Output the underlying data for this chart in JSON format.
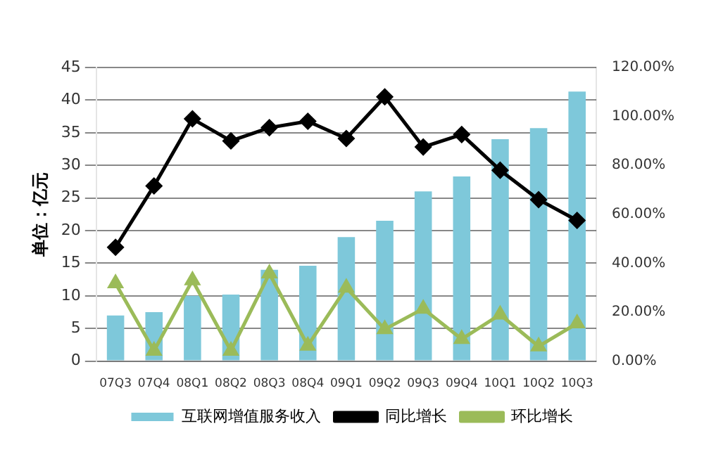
{
  "chart_data": {
    "type": "bar",
    "categories": [
      "07Q3",
      "07Q4",
      "08Q1",
      "08Q2",
      "08Q3",
      "08Q4",
      "09Q1",
      "09Q2",
      "09Q3",
      "09Q4",
      "10Q1",
      "10Q2",
      "10Q3"
    ],
    "ylabel": "单位：亿元",
    "series": [
      {
        "name": "互联网增值服务收入",
        "color": "#7ec8da",
        "values": [
          7,
          7.5,
          10,
          10.2,
          14,
          14.6,
          19,
          21.5,
          26,
          28.3,
          34,
          35.7,
          41.3
        ]
      },
      {
        "name": "同比增长",
        "type": "line",
        "axis": "y2",
        "marker": "diamond",
        "color": "#000000",
        "values": [
          46.5,
          71.6,
          99,
          90,
          95.4,
          98,
          91,
          108,
          87.5,
          92.6,
          78,
          66,
          57.5
        ]
      },
      {
        "name": "环比增长",
        "type": "line",
        "axis": "y2",
        "marker": "triangle",
        "color": "#9bbb59",
        "values": [
          31.8,
          4.2,
          33,
          4.2,
          35.8,
          6.3,
          30,
          13,
          21.4,
          9,
          19,
          6,
          15.4
        ]
      }
    ],
    "ylim": [
      0,
      45
    ],
    "yticks": [
      0,
      5,
      10,
      15,
      20,
      25,
      30,
      35,
      40,
      45
    ],
    "y2lim": [
      0,
      120
    ],
    "y2ticks": [
      {
        "value": 0,
        "label": "0.00%"
      },
      {
        "value": 20,
        "label": "20.00%"
      },
      {
        "value": 40,
        "label": "40.00%"
      },
      {
        "value": 60,
        "label": "60.00%"
      },
      {
        "value": 80,
        "label": "80.00%"
      },
      {
        "value": 100,
        "label": "100.00%"
      },
      {
        "value": 120,
        "label": "120.00%"
      }
    ],
    "grid": "y",
    "legend": "bottom"
  }
}
